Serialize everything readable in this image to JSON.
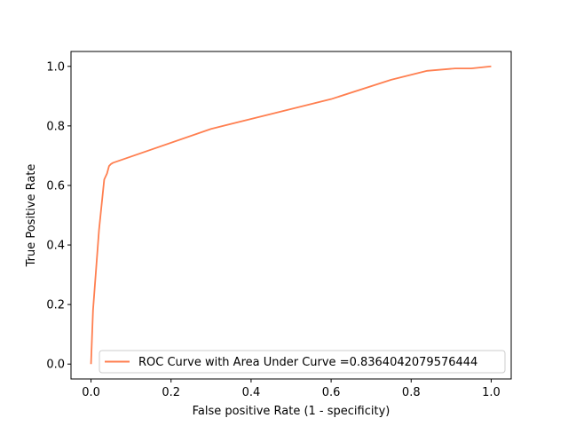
{
  "chart_data": {
    "type": "line",
    "title": "",
    "xlabel": "False positive Rate (1 - specificity)",
    "ylabel": "True Positive Rate",
    "xlim": [
      -0.05,
      1.05
    ],
    "ylim": [
      -0.05,
      1.05
    ],
    "xticks": [
      0.0,
      0.2,
      0.4,
      0.6,
      0.8,
      1.0
    ],
    "yticks": [
      0.0,
      0.2,
      0.4,
      0.6,
      0.8,
      1.0
    ],
    "xtick_labels": [
      "0.0",
      "0.2",
      "0.4",
      "0.6",
      "0.8",
      "1.0"
    ],
    "ytick_labels": [
      "0.0",
      "0.2",
      "0.4",
      "0.6",
      "0.8",
      "1.0"
    ],
    "grid": false,
    "legend_position": "lower-right",
    "series": [
      {
        "name": "ROC Curve with Area Under Curve =0.8364042079576444",
        "color": "#ff7f50",
        "x": [
          0.0,
          0.005,
          0.02,
          0.033,
          0.04,
          0.045,
          0.05,
          0.055,
          0.3,
          0.6,
          0.75,
          0.84,
          0.91,
          0.95,
          1.0
        ],
        "y": [
          0.0,
          0.18,
          0.45,
          0.62,
          0.64,
          0.665,
          0.672,
          0.676,
          0.79,
          0.89,
          0.955,
          0.985,
          0.993,
          0.993,
          1.0
        ]
      }
    ]
  }
}
